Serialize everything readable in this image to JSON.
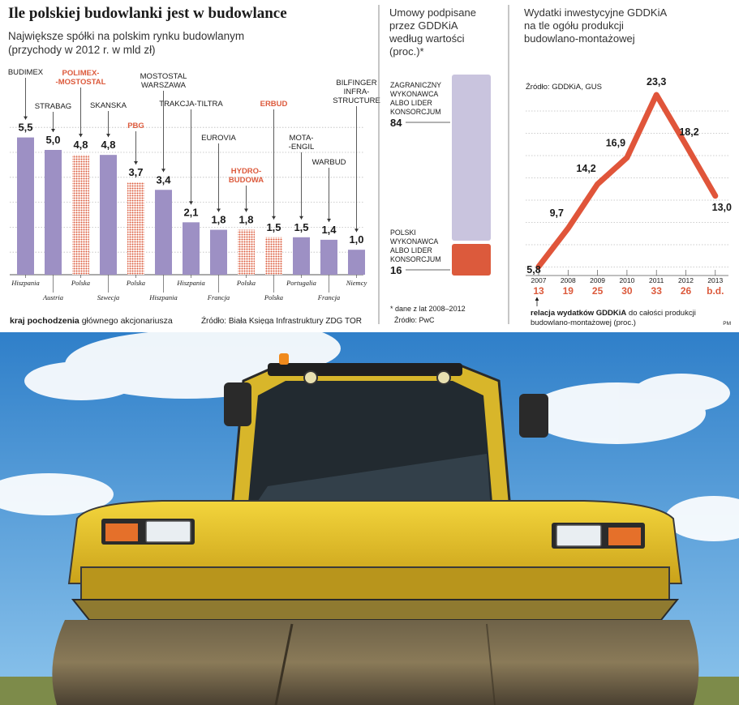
{
  "colors": {
    "purple": "#9d90c4",
    "light_purple": "#c9c4de",
    "polish_red": "#dc5a3c",
    "line_red": "#e0553a",
    "text": "#1a1a1a",
    "gray": "#6b6b6b"
  },
  "left_panel": {
    "title": "Ile polskiej budowlanki jest w budowlance",
    "subtitle_line1": "Największe spółki na polskim rynku budowlanym",
    "subtitle_line2": "(przychody w 2012 r. w mld zł)",
    "legend_bold": "kraj pochodzenia",
    "legend_rest": " głównego akcjonariusza",
    "source": "Źródło: Biała Księga Infrastruktury ZDG TOR"
  },
  "middle_panel": {
    "title_lines": [
      "Umowy podpisane",
      "przez GDDKiA",
      "według wartości",
      "(proc.)*"
    ],
    "footnote": "* dane z lat 2008–2012",
    "source": "Źródło: PwC"
  },
  "right_panel": {
    "title_lines": [
      "Wydatki inwestycyjne GDDKiA",
      "na tle ogółu produkcji",
      "budowlano-montażowej"
    ],
    "source": "Źródło: GDDKiA, GUS",
    "note_bold": "relacja wydatków GDDKiA",
    "note_rest": " do całości produkcji",
    "note_line2": "budowlano-montażowej (proc.)",
    "credit": "PM"
  },
  "photo": {
    "description_icon": "road-roller-photo"
  },
  "chart_data": [
    {
      "type": "bar",
      "title": "Ile polskiej budowlanki jest w budowlance",
      "subtitle": "Największe spółki na polskim rynku budowlanym (przychody w 2012 r. w mld zł)",
      "ylim": [
        0,
        6
      ],
      "grid": true,
      "categories": [
        {
          "label_lines": [
            "BUDIMEX"
          ],
          "country": "Hiszpania",
          "value": 5.5,
          "display": "5,5",
          "polish": false
        },
        {
          "label_lines": [
            "STRABAG"
          ],
          "country": "Austria",
          "value": 5.0,
          "display": "5,0",
          "polish": false
        },
        {
          "label_lines": [
            "POLIMEX-",
            "-MOSTOSTAL"
          ],
          "country": "Polska",
          "value": 4.8,
          "display": "4,8",
          "polish": true
        },
        {
          "label_lines": [
            "SKANSKA"
          ],
          "country": "Szwecja",
          "value": 4.8,
          "display": "4,8",
          "polish": false
        },
        {
          "label_lines": [
            "PBG"
          ],
          "country": "Polska",
          "value": 3.7,
          "display": "3,7",
          "polish": true
        },
        {
          "label_lines": [
            "MOSTOSTAL",
            "WARSZAWA"
          ],
          "country": "Hiszpania",
          "value": 3.4,
          "display": "3,4",
          "polish": false
        },
        {
          "label_lines": [
            "TRAKCJA-TILTRA"
          ],
          "country": "Hiszpania",
          "value": 2.1,
          "display": "2,1",
          "polish": false
        },
        {
          "label_lines": [
            "EUROVIA"
          ],
          "country": "Francja",
          "value": 1.8,
          "display": "1,8",
          "polish": false
        },
        {
          "label_lines": [
            "HYDRO-",
            "BUDOWA"
          ],
          "country": "Polska",
          "value": 1.8,
          "display": "1,8",
          "polish": true
        },
        {
          "label_lines": [
            "ERBUD"
          ],
          "country": "Polska",
          "value": 1.5,
          "display": "1,5",
          "polish": true
        },
        {
          "label_lines": [
            "MOTA-",
            "-ENGIL"
          ],
          "country": "Portugalia",
          "value": 1.5,
          "display": "1,5",
          "polish": false
        },
        {
          "label_lines": [
            "WARBUD"
          ],
          "country": "Francja",
          "value": 1.4,
          "display": "1,4",
          "polish": false
        },
        {
          "label_lines": [
            "BILFINGER",
            "INFRA-",
            "STRUCTURE"
          ],
          "country": "Niemcy",
          "value": 1.0,
          "display": "1,0",
          "polish": false
        }
      ]
    },
    {
      "type": "bar",
      "title": "Umowy podpisane przez GDDKiA według wartości (proc.)*",
      "stacked": true,
      "segments": [
        {
          "label_lines": [
            "ZAGRANICZNY",
            "WYKONAWCA",
            "ALBO LIDER",
            "KONSORCJUM"
          ],
          "value": 84,
          "display": "84",
          "color": "#c9c4de"
        },
        {
          "label_lines": [
            "POLSKI",
            "WYKONAWCA",
            "ALBO LIDER",
            "KONSORCJUM"
          ],
          "value": 16,
          "display": "16",
          "color": "#dc5a3c"
        }
      ]
    },
    {
      "type": "line",
      "title": "Wydatki inwestycyjne GDDKiA na tle ogółu produkcji budowlano-montażowej",
      "ylim": [
        5,
        24
      ],
      "grid": true,
      "x": [
        "2007",
        "2008",
        "2009",
        "2010",
        "2011",
        "2012",
        "2013"
      ],
      "values": [
        5.8,
        9.7,
        14.2,
        16.9,
        23.3,
        18.2,
        13.0
      ],
      "value_labels": [
        "5,8",
        "9,7",
        "14,2",
        "16,9",
        "23,3",
        "18,2",
        "13,0"
      ],
      "share": [
        "13",
        "19",
        "25",
        "30",
        "33",
        "26",
        "b.d."
      ]
    }
  ]
}
